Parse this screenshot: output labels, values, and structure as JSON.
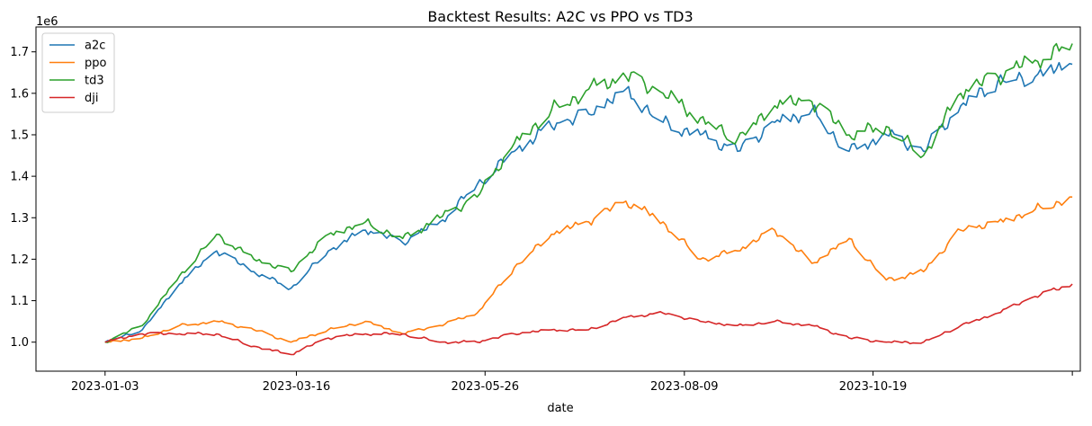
{
  "chart_data": {
    "type": "line",
    "title": "Backtest Results: A2C vs PPO vs TD3",
    "xlabel": "date",
    "ylabel": "",
    "y_offset_label": "1e6",
    "y_scale": 1000000,
    "ylim": [
      0.93,
      1.76
    ],
    "xlim": [
      "2022-12-08",
      "2024-01-05"
    ],
    "x_ticks": [
      "2023-01-03",
      "2023-03-16",
      "2023-05-26",
      "2023-08-09",
      "2023-10-19",
      "2024-01-02"
    ],
    "x_tick_labels": [
      "2023-01-03",
      "2023-03-16",
      "2023-05-26",
      "2023-08-09",
      "2023-10-19",
      ""
    ],
    "y_ticks": [
      1.0,
      1.1,
      1.2,
      1.3,
      1.4,
      1.5,
      1.6,
      1.7
    ],
    "y_tick_labels": [
      "1.0",
      "1.1",
      "1.2",
      "1.3",
      "1.4",
      "1.5",
      "1.6",
      "1.7"
    ],
    "grid": false,
    "legend_position": "top-left",
    "x": [
      "2023-01-03",
      "2023-01-17",
      "2023-01-31",
      "2023-02-14",
      "2023-02-28",
      "2023-03-14",
      "2023-03-28",
      "2023-04-11",
      "2023-04-25",
      "2023-05-09",
      "2023-05-23",
      "2023-06-06",
      "2023-06-20",
      "2023-07-04",
      "2023-07-18",
      "2023-08-01",
      "2023-08-15",
      "2023-08-29",
      "2023-09-12",
      "2023-09-26",
      "2023-10-10",
      "2023-10-24",
      "2023-11-07",
      "2023-11-21",
      "2023-12-05",
      "2023-12-19",
      "2024-01-02"
    ],
    "series": [
      {
        "name": "a2c",
        "color": "#1f77b4",
        "values": [
          1.0,
          1.03,
          1.14,
          1.22,
          1.17,
          1.13,
          1.22,
          1.27,
          1.24,
          1.29,
          1.38,
          1.46,
          1.52,
          1.55,
          1.61,
          1.53,
          1.5,
          1.46,
          1.53,
          1.56,
          1.46,
          1.5,
          1.46,
          1.57,
          1.63,
          1.64,
          1.67
        ]
      },
      {
        "name": "ppo",
        "color": "#ff7f0e",
        "values": [
          1.0,
          1.01,
          1.04,
          1.05,
          1.03,
          1.0,
          1.03,
          1.05,
          1.02,
          1.04,
          1.07,
          1.18,
          1.26,
          1.29,
          1.34,
          1.29,
          1.2,
          1.22,
          1.27,
          1.19,
          1.25,
          1.15,
          1.17,
          1.27,
          1.29,
          1.32,
          1.35
        ]
      },
      {
        "name": "td3",
        "color": "#2ca02c",
        "values": [
          1.0,
          1.04,
          1.16,
          1.26,
          1.2,
          1.17,
          1.26,
          1.29,
          1.25,
          1.3,
          1.35,
          1.48,
          1.56,
          1.61,
          1.64,
          1.6,
          1.54,
          1.49,
          1.57,
          1.58,
          1.5,
          1.52,
          1.45,
          1.6,
          1.64,
          1.68,
          1.72
        ]
      },
      {
        "name": "dji",
        "color": "#d62728",
        "values": [
          1.0,
          1.02,
          1.02,
          1.02,
          0.99,
          0.97,
          1.01,
          1.02,
          1.02,
          1.0,
          1.0,
          1.02,
          1.03,
          1.03,
          1.06,
          1.07,
          1.05,
          1.04,
          1.05,
          1.04,
          1.01,
          1.0,
          1.0,
          1.04,
          1.07,
          1.11,
          1.14
        ]
      }
    ]
  }
}
